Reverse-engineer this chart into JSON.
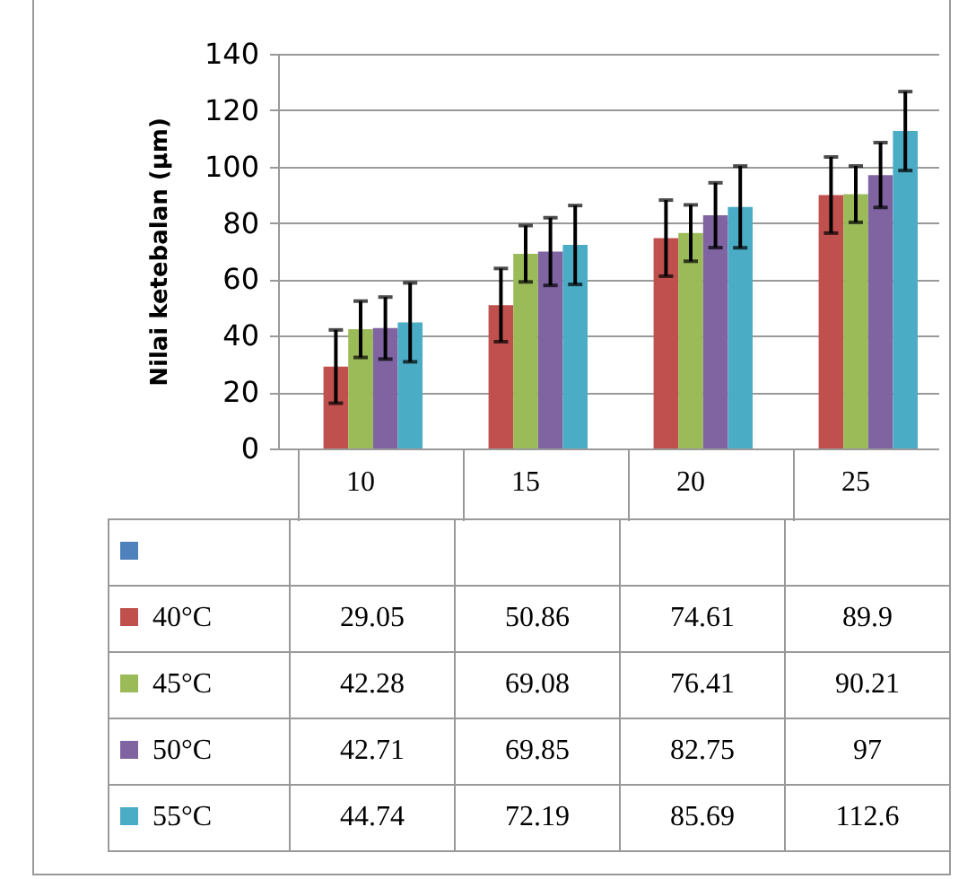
{
  "chart_data": {
    "type": "bar",
    "ylabel": "Nilai ketebalan (µm)",
    "categories": [
      "10",
      "15",
      "20",
      "25"
    ],
    "ylim": [
      0,
      140
    ],
    "yticks": [
      0,
      20,
      40,
      60,
      80,
      100,
      120,
      140
    ],
    "grid": "y",
    "data_labels": true,
    "legend": "bottom left",
    "series": [
      {
        "color": "#4f81bd",
        "values": [
          null,
          null,
          null,
          null
        ]
      },
      {
        "name": "40°C",
        "color": "#c0504d",
        "values": [
          29.05,
          50.86,
          74.61,
          89.9
        ],
        "errors": [
          13,
          13,
          13.5,
          13.5
        ]
      },
      {
        "name": "45°C",
        "color": "#9bbb59",
        "values": [
          42.28,
          69.08,
          76.41,
          90.21
        ],
        "errors": [
          10,
          10,
          10,
          10
        ]
      },
      {
        "name": "50°C",
        "color": "#8064a2",
        "values": [
          42.71,
          69.85,
          82.75,
          97
        ],
        "errors": [
          11,
          12,
          11.5,
          11.5
        ]
      },
      {
        "name": "55°C",
        "color": "#4bacc6",
        "values": [
          44.74,
          72.19,
          85.69,
          112.6
        ],
        "errors": [
          14,
          14,
          14.5,
          14
        ]
      }
    ]
  }
}
